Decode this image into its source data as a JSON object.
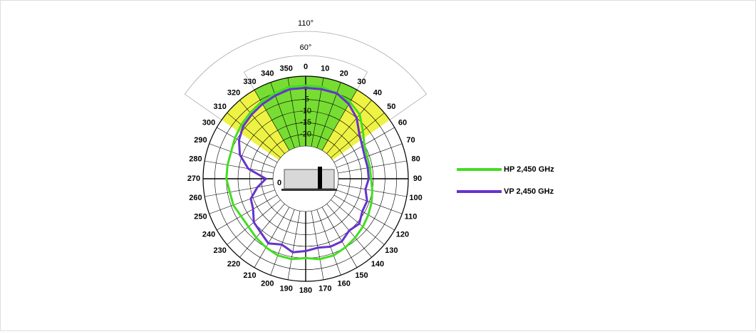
{
  "chart_data": {
    "type": "polar-line",
    "theta": [
      0,
      10,
      20,
      30,
      40,
      50,
      60,
      70,
      80,
      90,
      100,
      110,
      120,
      130,
      140,
      150,
      160,
      170,
      180,
      190,
      200,
      210,
      220,
      230,
      240,
      250,
      260,
      270,
      280,
      290,
      300,
      310,
      320,
      330,
      340,
      350
    ],
    "rlim": [
      -25,
      5
    ],
    "rticks": [
      -20,
      -15,
      -10,
      -5,
      0
    ],
    "sectors": [
      {
        "label": "110°",
        "from": -55,
        "to": 55,
        "color": "#eef244"
      },
      {
        "label": "60°",
        "from": -30,
        "to": 30,
        "color": "#77dd33"
      }
    ],
    "device_label": "0",
    "series": [
      {
        "name": "HP 2,450 GHz",
        "color": "#44dd22",
        "values": [
          1,
          1,
          0,
          -1,
          -3,
          -7,
          -10,
          -11,
          -11,
          -11,
          -10,
          -9,
          -8,
          -7,
          -6,
          -5,
          -4,
          -4,
          -5,
          -4,
          -4,
          -5,
          -6,
          -7,
          -7,
          -6,
          -6,
          -5,
          -5,
          -5,
          -4,
          -3,
          -2,
          -1,
          0,
          1
        ]
      },
      {
        "name": "VP 2,450 GHz",
        "color": "#6633cc",
        "values": [
          0,
          0,
          0,
          -2,
          -5,
          -9,
          -11,
          -12,
          -12,
          -12,
          -13,
          -11,
          -11,
          -9,
          -10,
          -8,
          -8,
          -9,
          -8,
          -7,
          -9,
          -7,
          -9,
          -10,
          -13,
          -14,
          -18,
          -22,
          -14,
          -9,
          -6,
          -4,
          -3,
          -2,
          -1,
          0
        ]
      }
    ]
  }
}
